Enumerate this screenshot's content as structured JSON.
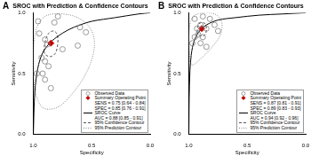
{
  "chart_data": [
    {
      "type": "scatter",
      "panel": "A",
      "title": "SROC with Prediction & Confidence Contours",
      "xlabel": "Specificity",
      "ylabel": "Sensitivity",
      "xlim": [
        1,
        0
      ],
      "ylim": [
        0,
        1
      ],
      "xticks": [
        {
          "value": 1,
          "label": "1.0"
        },
        {
          "value": 0.5,
          "label": "0.5"
        },
        {
          "value": 0,
          "label": "0.0"
        }
      ],
      "yticks": [
        {
          "value": 0,
          "label": "0.0"
        },
        {
          "value": 0.5,
          "label": "0.5"
        },
        {
          "value": 1,
          "label": "1.0"
        }
      ],
      "grid": false,
      "legend": "lower right",
      "series": [
        {
          "name": "Observed Data",
          "type": "scatter",
          "marker": "circle",
          "color": "#7f7f7f",
          "x": [
            0.96,
            0.82,
            0.79,
            0.6,
            0.55,
            0.95,
            0.9,
            0.88,
            0.62,
            0.75,
            0.93,
            0.9,
            0.87,
            0.97,
            0.92,
            0.9,
            0.85
          ],
          "values": [
            0.93,
            0.92,
            0.97,
            0.88,
            0.84,
            0.83,
            0.78,
            0.74,
            0.73,
            0.7,
            0.63,
            0.6,
            0.56,
            0.5,
            0.5,
            0.45,
            0.38
          ]
        },
        {
          "name": "Summary Operating Point\nSENS = 0.75 [0.64 - 0.84]\nSPEC = 0.85 [0.76 - 0.91]",
          "type": "scatter",
          "marker": "diamond",
          "color": "#c00000",
          "x": [
            0.85
          ],
          "values": [
            0.75
          ]
        },
        {
          "name": "SROC Curve\nAUC = 0.88 [0.85 - 0.91]",
          "type": "line",
          "line_style": "solid",
          "color": "#000000",
          "x": [
            1,
            0.99,
            0.97,
            0.93,
            0.87,
            0.8,
            0.7,
            0.6,
            0.5,
            0.3,
            0.1,
            0
          ],
          "values": [
            0,
            0.3,
            0.5,
            0.65,
            0.74,
            0.8,
            0.86,
            0.9,
            0.93,
            0.96,
            0.99,
            1
          ]
        },
        {
          "name": "95% Confidence Contour",
          "type": "line",
          "line_style": "dashed",
          "color": "#555555",
          "x": [
            0.91,
            0.9,
            0.87,
            0.83,
            0.8,
            0.79,
            0.81,
            0.85,
            0.89,
            0.91
          ],
          "values": [
            0.68,
            0.76,
            0.83,
            0.85,
            0.83,
            0.76,
            0.67,
            0.64,
            0.65,
            0.68
          ]
        },
        {
          "name": "95% Prediction Contour",
          "type": "line",
          "line_style": "dotted",
          "color": "#888888",
          "x": [
            0.99,
            1,
            0.98,
            0.9,
            0.75,
            0.6,
            0.5,
            0.48,
            0.55,
            0.68,
            0.8,
            0.92,
            0.99
          ],
          "values": [
            0.35,
            0.6,
            0.85,
            0.97,
            0.99,
            0.95,
            0.85,
            0.7,
            0.5,
            0.32,
            0.22,
            0.22,
            0.35
          ]
        }
      ]
    },
    {
      "type": "scatter",
      "panel": "B",
      "title": "SROC with Prediction & Confidence Contours",
      "xlabel": "Specificity",
      "ylabel": "Sensitivity",
      "xlim": [
        1,
        0
      ],
      "ylim": [
        0,
        1
      ],
      "xticks": [
        {
          "value": 1,
          "label": "1.0"
        },
        {
          "value": 0.5,
          "label": "0.5"
        },
        {
          "value": 0,
          "label": "0.0"
        }
      ],
      "yticks": [
        {
          "value": 0,
          "label": "0.0"
        },
        {
          "value": 0.5,
          "label": "0.5"
        },
        {
          "value": 1,
          "label": "1.0"
        }
      ],
      "grid": false,
      "legend": "lower right",
      "series": [
        {
          "name": "Observed Data",
          "type": "scatter",
          "marker": "circle",
          "color": "#7f7f7f",
          "x": [
            0.95,
            0.88,
            0.82,
            0.78,
            0.9,
            0.93,
            0.85,
            0.92,
            0.95,
            0.88,
            0.97,
            0.9,
            0.85,
            0.75
          ],
          "values": [
            0.95,
            0.97,
            0.95,
            0.9,
            0.9,
            0.87,
            0.87,
            0.82,
            0.8,
            0.8,
            0.75,
            0.75,
            0.72,
            0.85
          ]
        },
        {
          "name": "Summary Operating Point\nSENS = 0.87 [0.81 - 0.91]\nSPEC = 0.89 [0.83 - 0.93]",
          "type": "scatter",
          "marker": "diamond",
          "color": "#c00000",
          "x": [
            0.89
          ],
          "values": [
            0.87
          ]
        },
        {
          "name": "SROC Curve\nAUC = 0.94 [0.92 - 0.96]",
          "type": "line",
          "line_style": "solid",
          "color": "#000000",
          "x": [
            1,
            0.995,
            0.98,
            0.95,
            0.9,
            0.85,
            0.75,
            0.6,
            0.4,
            0.2,
            0
          ],
          "values": [
            0,
            0.4,
            0.65,
            0.78,
            0.86,
            0.9,
            0.94,
            0.96,
            0.98,
            0.99,
            1
          ]
        },
        {
          "name": "95% Confidence Contour",
          "type": "line",
          "line_style": "dashed",
          "color": "#555555",
          "x": [
            0.93,
            0.92,
            0.89,
            0.86,
            0.85,
            0.86,
            0.89,
            0.92,
            0.93
          ],
          "values": [
            0.84,
            0.9,
            0.92,
            0.91,
            0.87,
            0.82,
            0.81,
            0.82,
            0.84
          ]
        },
        {
          "name": "95% Prediction Contour",
          "type": "line",
          "line_style": "dotted",
          "color": "#888888",
          "x": [
            0.99,
            1,
            0.97,
            0.88,
            0.78,
            0.72,
            0.73,
            0.8,
            0.9,
            0.97,
            0.99
          ],
          "values": [
            0.6,
            0.8,
            0.96,
            1,
            0.99,
            0.93,
            0.82,
            0.72,
            0.62,
            0.57,
            0.6
          ]
        }
      ]
    }
  ]
}
